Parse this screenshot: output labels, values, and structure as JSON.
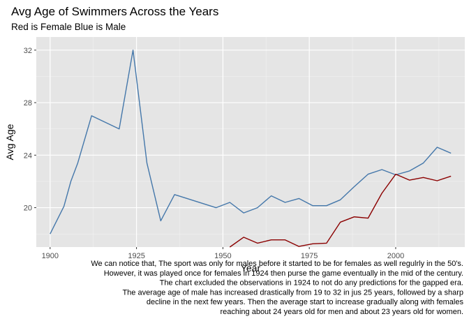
{
  "chart_data": {
    "type": "line",
    "title": "Avg Age of Swimmers Across the Years",
    "subtitle": "Red is Female Blue is Male",
    "xlabel": "Year",
    "ylabel": "Avg Age",
    "xlim": [
      1896,
      2020
    ],
    "ylim": [
      17.0,
      33.0
    ],
    "x_ticks": [
      1900,
      1925,
      1950,
      1975,
      2000
    ],
    "y_ticks": [
      20,
      24,
      28,
      32
    ],
    "grid": true,
    "legend": "none",
    "series": [
      {
        "color": "#4477AA",
        "points": [
          [
            1900,
            18.0
          ],
          [
            1904,
            20.1
          ],
          [
            1906,
            22.0
          ],
          [
            1908,
            23.4
          ],
          [
            1912,
            27.0
          ],
          [
            1920,
            26.0
          ],
          [
            1924,
            32.0
          ],
          [
            1928,
            23.4
          ],
          [
            1932,
            19.0
          ],
          [
            1936,
            21.0
          ],
          [
            1948,
            20.0
          ],
          [
            1952,
            20.4
          ],
          [
            1956,
            19.6
          ],
          [
            1960,
            20.0
          ],
          [
            1964,
            20.9
          ],
          [
            1968,
            20.4
          ],
          [
            1972,
            20.7
          ],
          [
            1976,
            20.15
          ],
          [
            1980,
            20.15
          ],
          [
            1984,
            20.6
          ],
          [
            1988,
            21.6
          ],
          [
            1992,
            22.55
          ],
          [
            1996,
            22.9
          ],
          [
            2000,
            22.5
          ],
          [
            2004,
            22.8
          ],
          [
            2008,
            23.4
          ],
          [
            2012,
            24.6
          ],
          [
            2016,
            24.15
          ]
        ]
      },
      {
        "color": "#8B0000",
        "points": [
          [
            1952,
            17.0
          ],
          [
            1956,
            17.75
          ],
          [
            1960,
            17.3
          ],
          [
            1964,
            17.55
          ],
          [
            1968,
            17.55
          ],
          [
            1972,
            17.05
          ],
          [
            1976,
            17.25
          ],
          [
            1980,
            17.3
          ],
          [
            1984,
            18.9
          ],
          [
            1988,
            19.3
          ],
          [
            1992,
            19.2
          ],
          [
            1996,
            21.1
          ],
          [
            2000,
            22.55
          ],
          [
            2004,
            22.1
          ],
          [
            2008,
            22.3
          ],
          [
            2012,
            22.05
          ],
          [
            2016,
            22.4
          ]
        ]
      }
    ],
    "caption": [
      "We can notice that, The sport was only for males before it started to be for females as well regulrly in the 50's.",
      "However, it was played once for females in 1924 then purse the game eventually in the mid of the century.",
      "The chart excluded the observations in 1924 to not do any predictions for the gapped era.",
      "The average age of male has increased drastically from 19 to 32 in jus 25 years, followed by a sharp",
      "decline in the next few years. Then the average start to increase gradually along with females",
      "reaching about 24 years old for men and about 23 years old for women."
    ]
  }
}
